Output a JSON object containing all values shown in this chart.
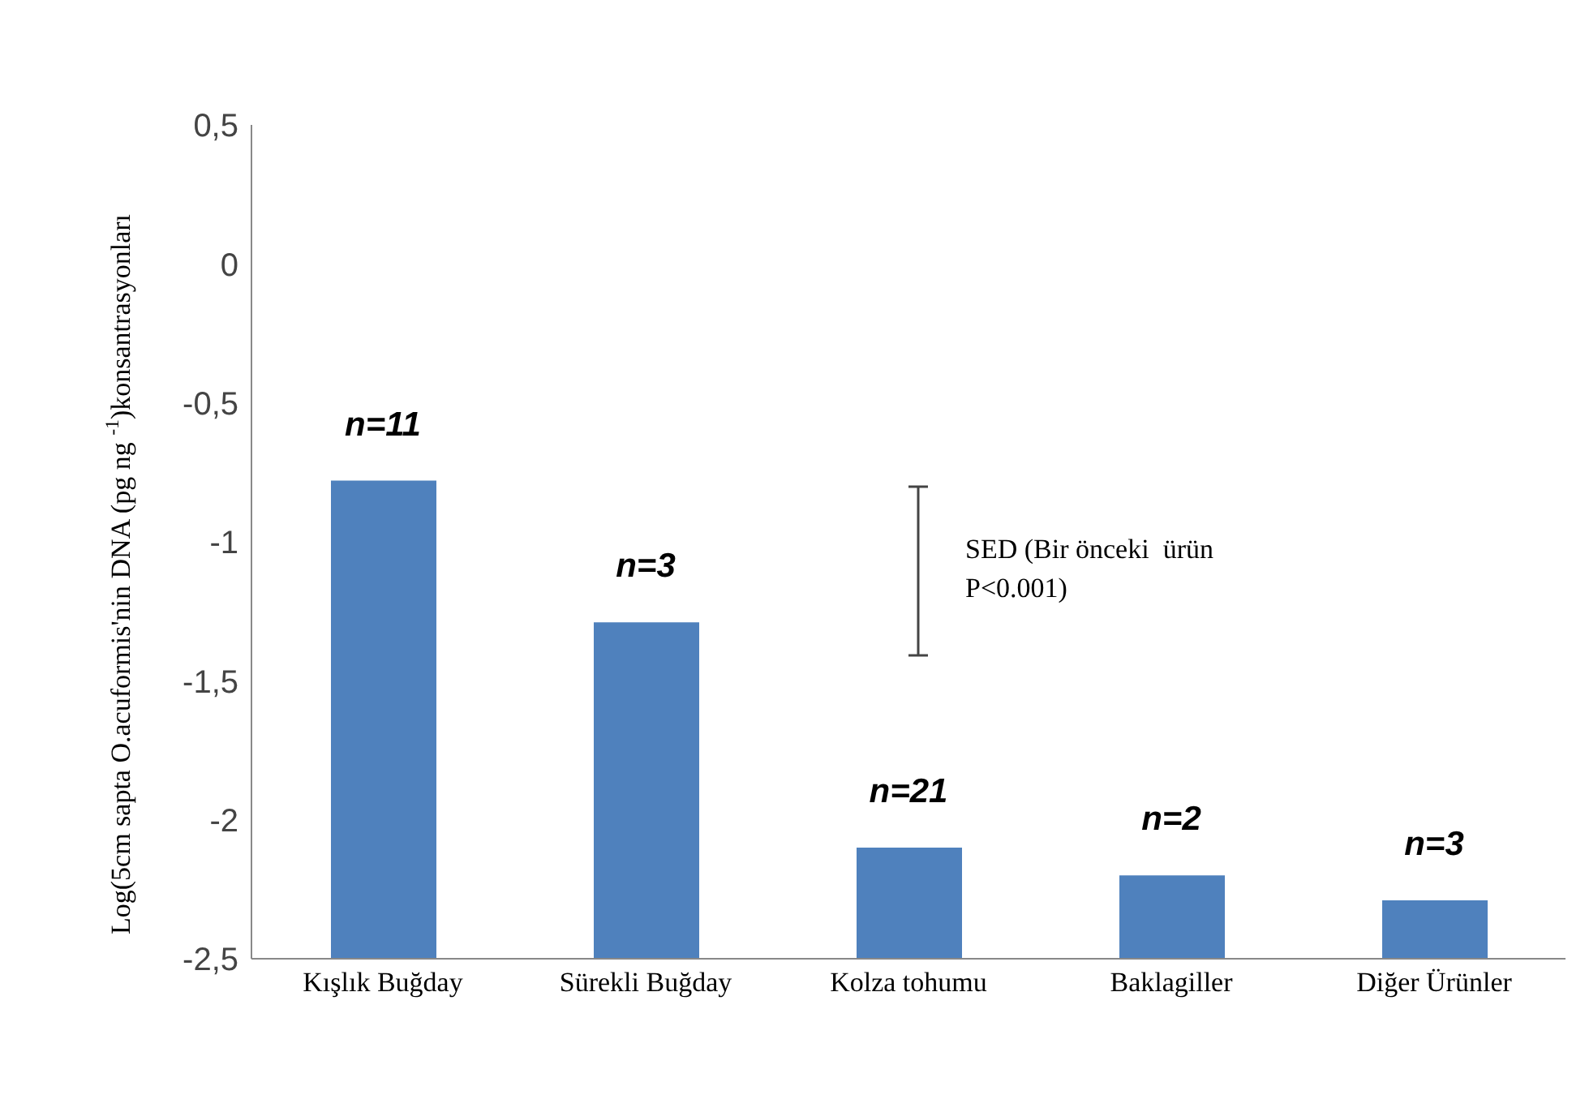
{
  "chart_data": {
    "type": "bar",
    "ylabel": "Log(5cm sapta O.acuformis'nin DNA (pg ng $^{-1}$)konsantrasyonları",
    "categories": [
      "Kışlık Buğday",
      "Sürekli Buğday",
      "Kolza tohumu",
      "Baklagiller",
      "Diğer Ürünler"
    ],
    "values": [
      1.72,
      1.21,
      0.4,
      0.3,
      0.21
    ],
    "base": [
      -2.5,
      -2.5,
      -2.5,
      -2.5,
      -2.5
    ],
    "color": "#4f81bd",
    "ylim": [
      -2.5,
      0.5
    ],
    "yticks": [
      {
        "value": -2.5,
        "label": "-2,5"
      },
      -2,
      {
        "value": -1.5,
        "label": "-1,5"
      },
      -1,
      {
        "value": -0.5,
        "label": "-0,5"
      },
      0,
      {
        "value": 0.5,
        "label": "0,5"
      }
    ],
    "grid": false,
    "legend": false,
    "annotations": [
      {
        "text": "n=11",
        "x": "Kışlık Buğday",
        "y": -0.78
      },
      {
        "text": "n=3",
        "x": "Sürekli Buğday",
        "y": -1.29
      },
      {
        "text": "n=21",
        "x": "Kolza tohumu",
        "y": -2.1
      },
      {
        "text": "n=2",
        "x": "Baklagiller",
        "y": -2.2
      },
      {
        "text": "n=3",
        "x": "Diğer Ürünler",
        "y": -2.29
      },
      "SED (Bir önceki  ürün\nP<0.001)"
    ]
  }
}
